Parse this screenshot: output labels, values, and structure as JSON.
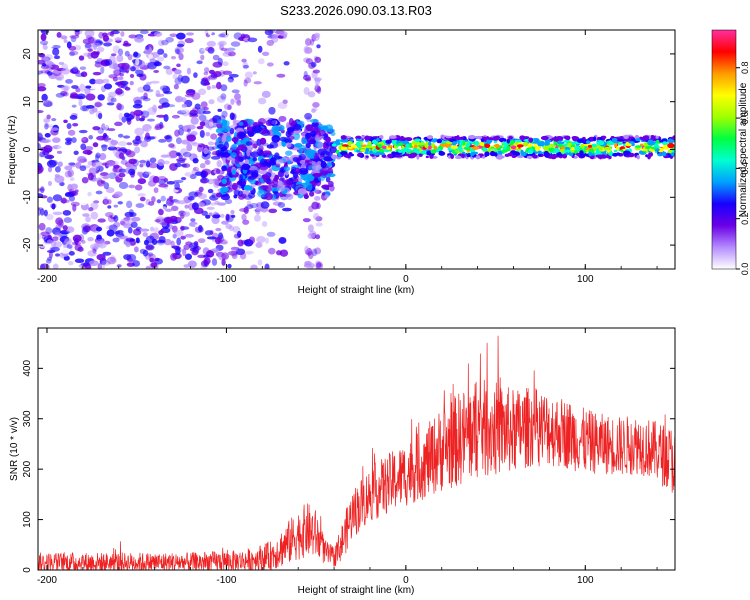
{
  "title": "S233.2026.090.03.13.R03",
  "chart_data": [
    {
      "type": "heatmap",
      "id": "spectrogram",
      "xlabel": "Height of straight line (km)",
      "ylabel": "Frequency (Hz)",
      "xlim": [
        -205,
        150
      ],
      "ylim": [
        -25,
        25
      ],
      "xticks": [
        -200,
        -100,
        0,
        100
      ],
      "xtick_labels": [
        "-200",
        "-100",
        "0",
        "100"
      ],
      "yticks": [
        -20,
        -10,
        0,
        10,
        20
      ],
      "ytick_labels": [
        "-20",
        "-10",
        "0",
        "10",
        "20"
      ],
      "colorbar": {
        "label": "Normalized spectral amplitude",
        "range": [
          0.0,
          0.95
        ],
        "ticks": [
          0.0,
          0.2,
          0.4,
          0.6,
          0.8
        ],
        "tick_labels": [
          "0.0",
          "0.2",
          "0.4",
          "0.6",
          "0.8"
        ],
        "colormap": [
          "#ffffff",
          "#b48cff",
          "#6b00e6",
          "#1a00ff",
          "#00a0ff",
          "#00ffd0",
          "#00ff40",
          "#a0ff00",
          "#ffff00",
          "#ff9a00",
          "#ff0000",
          "#ff2fa0"
        ]
      },
      "regions": [
        {
          "name": "noise",
          "x_range": [
            -205,
            -105
          ],
          "freq_range": [
            -25,
            25
          ],
          "level": 0.18
        },
        {
          "name": "transition",
          "x_range": [
            -105,
            -40
          ],
          "freq_range": [
            -10,
            6
          ],
          "level": 0.3
        },
        {
          "name": "narrowband-signal",
          "x_range": [
            -40,
            150
          ],
          "center_freq": 0.5,
          "halfwidth": 1.2,
          "level": 0.85
        }
      ]
    },
    {
      "type": "line",
      "id": "snr",
      "xlabel": "Height of straight line (km)",
      "ylabel": "SNR (10 * v/v)",
      "xlim": [
        -205,
        150
      ],
      "ylim": [
        0,
        480
      ],
      "xticks": [
        -200,
        -100,
        0,
        100
      ],
      "xtick_labels": [
        "-200",
        "-100",
        "0",
        "100"
      ],
      "yticks": [
        0,
        100,
        200,
        300,
        400
      ],
      "ytick_labels": [
        "0",
        "100",
        "200",
        "300",
        "400"
      ],
      "series": [
        {
          "name": "SNR",
          "color": "#ee2222",
          "envelope_x": [
            -205,
            -120,
            -90,
            -75,
            -65,
            -60,
            -55,
            -50,
            -45,
            -40,
            -35,
            -30,
            -20,
            -10,
            0,
            10,
            20,
            30,
            40,
            50,
            60,
            70,
            80,
            90,
            100,
            110,
            120,
            130,
            140,
            150
          ],
          "envelope_y": [
            15,
            15,
            18,
            28,
            55,
            70,
            80,
            70,
            35,
            25,
            60,
            110,
            150,
            170,
            190,
            210,
            240,
            260,
            280,
            280,
            275,
            285,
            280,
            270,
            255,
            250,
            245,
            250,
            235,
            215
          ],
          "noise_amplitude": [
            20,
            20,
            22,
            30,
            45,
            50,
            55,
            50,
            25,
            20,
            40,
            50,
            55,
            60,
            65,
            70,
            85,
            95,
            100,
            95,
            85,
            80,
            75,
            70,
            65,
            60,
            60,
            60,
            60,
            70
          ]
        }
      ]
    }
  ]
}
